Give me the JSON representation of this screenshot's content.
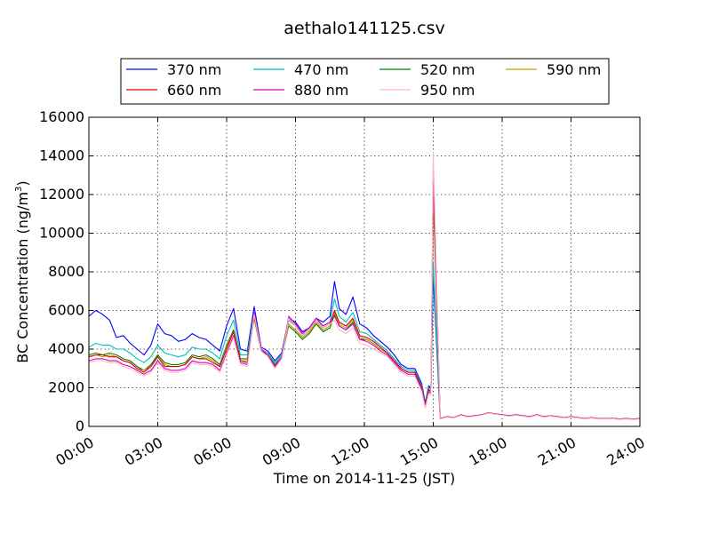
{
  "chart_data": {
    "type": "line",
    "title": "aethalo141125.csv",
    "xlabel": "Time on 2014-11-25 (JST)",
    "ylabel": "BC Concentration (ng/m",
    "ylabel_sup": "3",
    "ylabel_tail": ")",
    "xlim": [
      0,
      24
    ],
    "ylim": [
      0,
      16000
    ],
    "grid": true,
    "legend_position": "top",
    "x_ticks": [
      0,
      3,
      6,
      9,
      12,
      15,
      18,
      21,
      24
    ],
    "x_tick_labels": [
      "00:00",
      "03:00",
      "06:00",
      "09:00",
      "12:00",
      "15:00",
      "18:00",
      "21:00",
      "24:00"
    ],
    "y_ticks": [
      0,
      2000,
      4000,
      6000,
      8000,
      10000,
      12000,
      14000,
      16000
    ],
    "y_tick_labels": [
      "0",
      "2000",
      "4000",
      "6000",
      "8000",
      "10000",
      "12000",
      "14000",
      "16000"
    ],
    "x": [
      0.0,
      0.3,
      0.6,
      0.9,
      1.2,
      1.5,
      1.8,
      2.1,
      2.4,
      2.7,
      3.0,
      3.3,
      3.6,
      3.9,
      4.2,
      4.5,
      4.8,
      5.1,
      5.4,
      5.7,
      6.0,
      6.3,
      6.6,
      6.9,
      7.2,
      7.5,
      7.8,
      8.1,
      8.4,
      8.7,
      9.0,
      9.3,
      9.6,
      9.9,
      10.2,
      10.5,
      10.7,
      10.9,
      11.2,
      11.5,
      11.8,
      12.1,
      12.4,
      12.7,
      13.0,
      13.3,
      13.6,
      13.9,
      14.2,
      14.5,
      14.65,
      14.8,
      14.9,
      15.0,
      15.3,
      15.6,
      15.9,
      16.2,
      16.5,
      16.8,
      17.1,
      17.4,
      17.7,
      18.0,
      18.3,
      18.6,
      18.9,
      19.2,
      19.5,
      19.8,
      20.1,
      20.4,
      20.7,
      21.0,
      21.3,
      21.6,
      21.9,
      22.2,
      22.5,
      22.8,
      23.1,
      23.4,
      23.7,
      24.0
    ],
    "series": [
      {
        "name": "370 nm",
        "color": "#0000ff",
        "values": [
          5700,
          6000,
          5800,
          5500,
          4600,
          4700,
          4300,
          4000,
          3700,
          4200,
          5300,
          4800,
          4700,
          4400,
          4500,
          4800,
          4600,
          4500,
          4200,
          3900,
          5200,
          6100,
          4000,
          3900,
          6200,
          4100,
          3900,
          3400,
          3800,
          5600,
          5400,
          4900,
          5100,
          5600,
          5400,
          5700,
          7500,
          6100,
          5800,
          6700,
          5300,
          5100,
          4700,
          4400,
          4100,
          3700,
          3200,
          3000,
          3000,
          2200,
          1200,
          2100,
          2000,
          7800,
          400,
          500,
          450,
          600,
          500,
          550,
          600,
          700,
          650,
          600,
          550,
          600,
          550,
          500,
          600,
          500,
          550,
          500,
          450,
          500,
          450,
          400,
          450,
          400,
          400,
          420,
          380,
          400,
          380,
          400
        ]
      },
      {
        "name": "470 nm",
        "color": "#00bfbf",
        "values": [
          4100,
          4300,
          4200,
          4200,
          4000,
          4000,
          3800,
          3500,
          3300,
          3600,
          4200,
          3800,
          3700,
          3600,
          3700,
          4100,
          4000,
          4000,
          3800,
          3500,
          4700,
          5500,
          3700,
          3700,
          5900,
          4000,
          3800,
          3300,
          3700,
          5500,
          5200,
          4700,
          5000,
          5500,
          5200,
          5400,
          6600,
          5700,
          5400,
          5900,
          4900,
          4800,
          4500,
          4200,
          3900,
          3500,
          3100,
          2900,
          2900,
          2100,
          1100,
          2000,
          1900,
          8500,
          400,
          500,
          450,
          600,
          500,
          550,
          600,
          700,
          650,
          600,
          550,
          600,
          550,
          500,
          600,
          500,
          550,
          500,
          450,
          500,
          450,
          400,
          450,
          400,
          400,
          420,
          380,
          400,
          380,
          400
        ]
      },
      {
        "name": "520 nm",
        "color": "#008000",
        "values": [
          3700,
          3800,
          3700,
          3800,
          3700,
          3500,
          3400,
          3100,
          2900,
          3200,
          3700,
          3300,
          3200,
          3200,
          3300,
          3700,
          3600,
          3700,
          3500,
          3200,
          4200,
          5000,
          3500,
          3500,
          5600,
          3900,
          3700,
          3200,
          3600,
          5200,
          4900,
          4500,
          4800,
          5300,
          4900,
          5100,
          5800,
          5200,
          5000,
          5400,
          4500,
          4500,
          4300,
          4000,
          3800,
          3400,
          3000,
          2800,
          2800,
          2000,
          1100,
          1900,
          1800,
          12000,
          400,
          500,
          450,
          600,
          500,
          550,
          600,
          700,
          650,
          600,
          550,
          600,
          550,
          500,
          600,
          500,
          550,
          500,
          450,
          500,
          450,
          400,
          450,
          400,
          400,
          420,
          380,
          400,
          380,
          400
        ]
      },
      {
        "name": "590 nm",
        "color": "#c0a000",
        "values": [
          3600,
          3700,
          3600,
          3700,
          3600,
          3400,
          3300,
          3000,
          2900,
          3100,
          3600,
          3200,
          3100,
          3100,
          3200,
          3600,
          3500,
          3600,
          3400,
          3100,
          4100,
          4900,
          3400,
          3400,
          5600,
          3900,
          3700,
          3100,
          3600,
          5300,
          5000,
          4600,
          4900,
          5400,
          5000,
          5200,
          5900,
          5300,
          5100,
          5500,
          4600,
          4500,
          4300,
          4000,
          3800,
          3400,
          3000,
          2800,
          2800,
          2000,
          1050,
          1900,
          1800,
          12500,
          400,
          500,
          450,
          600,
          500,
          550,
          600,
          700,
          650,
          600,
          550,
          600,
          550,
          500,
          600,
          500,
          550,
          500,
          450,
          500,
          450,
          400,
          450,
          400,
          400,
          420,
          380,
          400,
          380,
          400
        ]
      },
      {
        "name": "660 nm",
        "color": "#dd0000",
        "values": [
          3600,
          3700,
          3700,
          3600,
          3600,
          3400,
          3300,
          3000,
          2800,
          3100,
          3600,
          3100,
          3100,
          3100,
          3200,
          3600,
          3500,
          3500,
          3300,
          3100,
          4000,
          4900,
          3400,
          3300,
          5700,
          3900,
          3700,
          3100,
          3600,
          5600,
          5200,
          4700,
          5000,
          5500,
          5100,
          5300,
          6000,
          5400,
          5200,
          5600,
          4700,
          4600,
          4400,
          4100,
          3800,
          3400,
          3000,
          2800,
          2800,
          2000,
          1050,
          1900,
          1800,
          13000,
          400,
          500,
          450,
          600,
          500,
          550,
          600,
          700,
          650,
          600,
          550,
          600,
          550,
          500,
          600,
          500,
          550,
          500,
          450,
          500,
          450,
          400,
          450,
          400,
          400,
          420,
          380,
          400,
          380,
          400
        ]
      },
      {
        "name": "880 nm",
        "color": "#cc00cc",
        "values": [
          3400,
          3500,
          3500,
          3400,
          3400,
          3200,
          3100,
          2900,
          2700,
          2900,
          3400,
          3000,
          2900,
          2900,
          3000,
          3400,
          3300,
          3300,
          3200,
          2900,
          3800,
          4700,
          3300,
          3200,
          5900,
          4000,
          3700,
          3100,
          3600,
          5700,
          5300,
          4800,
          5100,
          5600,
          5200,
          5400,
          5700,
          5200,
          5000,
          5300,
          4500,
          4400,
          4200,
          3900,
          3700,
          3300,
          2900,
          2700,
          2700,
          1900,
          1000,
          1800,
          1700,
          13500,
          400,
          500,
          450,
          600,
          500,
          550,
          600,
          700,
          650,
          600,
          550,
          600,
          550,
          500,
          600,
          500,
          550,
          500,
          450,
          500,
          450,
          400,
          450,
          400,
          400,
          420,
          380,
          400,
          380,
          400
        ]
      },
      {
        "name": "950 nm",
        "color": "#ffb6c1",
        "values": [
          3300,
          3400,
          3400,
          3300,
          3300,
          3100,
          3000,
          2800,
          2600,
          2800,
          3300,
          2900,
          2800,
          2800,
          2900,
          3300,
          3200,
          3200,
          3100,
          2800,
          3700,
          4600,
          3200,
          3100,
          5800,
          3900,
          3600,
          3000,
          3500,
          5600,
          5200,
          4700,
          5000,
          5500,
          5100,
          5300,
          5500,
          5000,
          4800,
          5100,
          4300,
          4200,
          4000,
          3800,
          3600,
          3200,
          2800,
          2600,
          2600,
          1800,
          950,
          1700,
          1600,
          14200,
          380,
          480,
          430,
          580,
          480,
          530,
          580,
          680,
          630,
          580,
          530,
          580,
          530,
          480,
          580,
          480,
          530,
          480,
          430,
          480,
          430,
          380,
          430,
          380,
          380,
          400,
          360,
          380,
          360,
          380
        ]
      }
    ]
  }
}
